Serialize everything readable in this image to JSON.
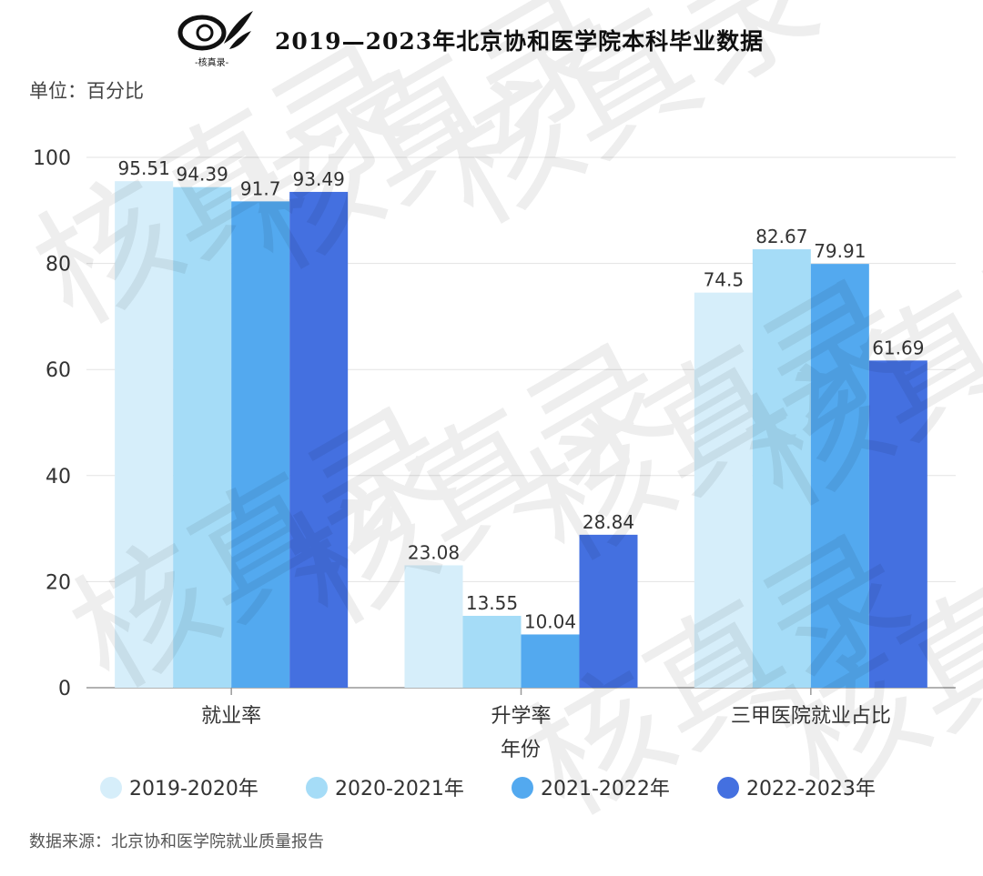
{
  "header": {
    "title": "2019—2023年北京协和医学院本科毕业数据",
    "logo_text": "-核真录-"
  },
  "unit_label": "单位：百分比",
  "source_label": "数据来源：北京协和医学院就业质量报告",
  "watermark_text": "核真录",
  "colors": {
    "series": [
      "#d6eefa",
      "#a5dcf7",
      "#53a9ef",
      "#4470e0"
    ],
    "grid": "#e3e3e3",
    "axis": "#999999"
  },
  "chart_data": {
    "type": "bar",
    "categories": [
      "就业率",
      "升学率",
      "三甲医院就业占比"
    ],
    "xlabel": "年份",
    "ylabel": "",
    "ylim": [
      0,
      100
    ],
    "yticks": [
      0,
      20,
      40,
      60,
      80,
      100
    ],
    "grid": true,
    "legend_position": "bottom",
    "series": [
      {
        "name": "2019-2020年",
        "values": [
          95.51,
          23.08,
          74.5
        ]
      },
      {
        "name": "2020-2021年",
        "values": [
          94.39,
          13.55,
          82.67
        ]
      },
      {
        "name": "2021-2022年",
        "values": [
          91.7,
          10.04,
          79.91
        ]
      },
      {
        "name": "2022-2023年",
        "values": [
          93.49,
          28.84,
          61.69
        ]
      }
    ]
  }
}
